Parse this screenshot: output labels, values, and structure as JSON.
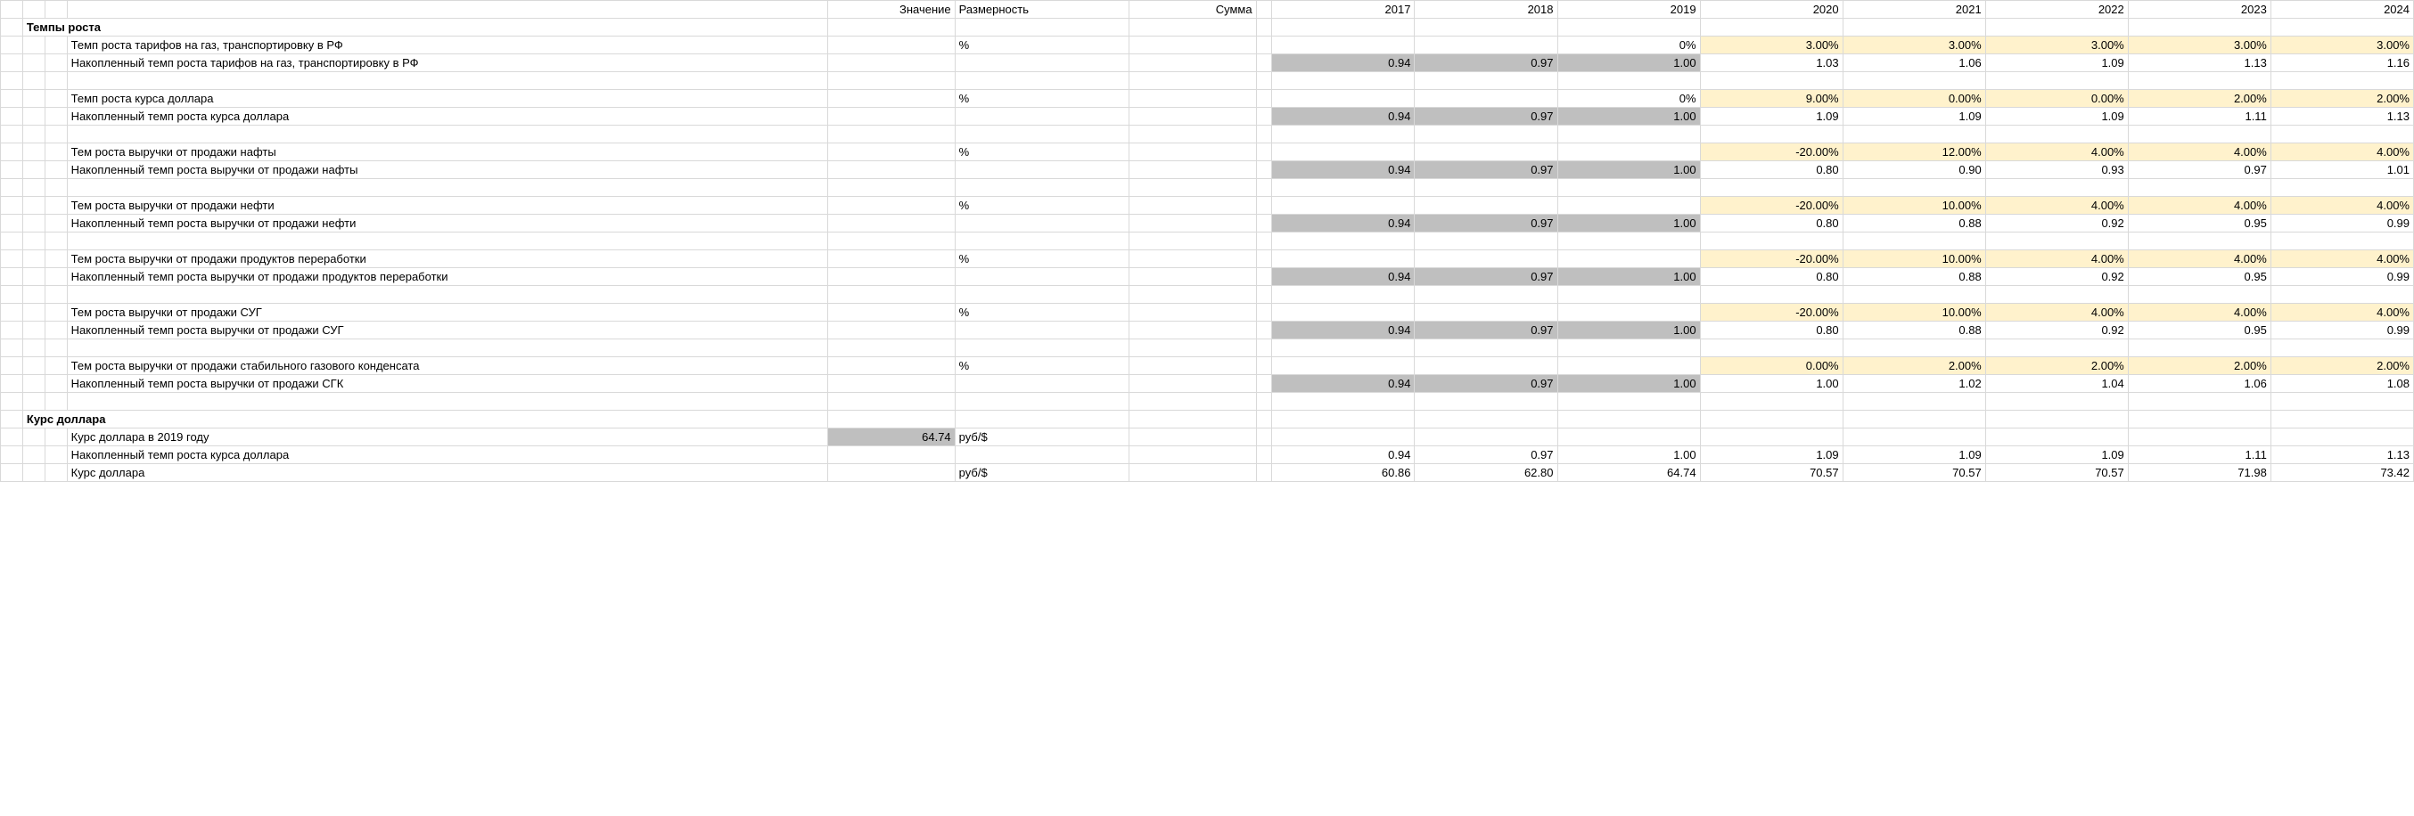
{
  "headers": {
    "value": "Значение",
    "unit": "Размерность",
    "sum": "Сумма",
    "years": [
      "2017",
      "2018",
      "2019",
      "2020",
      "2021",
      "2022",
      "2023",
      "2024"
    ]
  },
  "colors": {
    "highlight_yellow": "#fff2cc",
    "highlight_gray": "#bfbfbf",
    "grid": "#d9d9d9",
    "text": "#000000",
    "background": "#ffffff"
  },
  "section1": {
    "title": "Темпы роста",
    "groups": [
      {
        "rate_label": "Темп роста тарифов на газ, транспортировку в РФ",
        "rate_unit": "%",
        "rate_vals": [
          "",
          "",
          "0%",
          "3.00%",
          "3.00%",
          "3.00%",
          "3.00%",
          "3.00%"
        ],
        "rate_hl": [
          false,
          false,
          false,
          true,
          true,
          true,
          true,
          true
        ],
        "acc_label": "Накопленный темп роста тарифов на газ, транспортировку в РФ",
        "acc_vals": [
          "0.94",
          "0.97",
          "1.00",
          "1.03",
          "1.06",
          "1.09",
          "1.13",
          "1.16"
        ],
        "acc_hl": [
          true,
          true,
          true,
          false,
          false,
          false,
          false,
          false
        ]
      },
      {
        "rate_label": "Темп роста курса доллара",
        "rate_unit": "%",
        "rate_vals": [
          "",
          "",
          "0%",
          "9.00%",
          "0.00%",
          "0.00%",
          "2.00%",
          "2.00%"
        ],
        "rate_hl": [
          false,
          false,
          false,
          true,
          true,
          true,
          true,
          true
        ],
        "acc_label": "Накопленный темп роста курса доллара",
        "acc_vals": [
          "0.94",
          "0.97",
          "1.00",
          "1.09",
          "1.09",
          "1.09",
          "1.11",
          "1.13"
        ],
        "acc_hl": [
          true,
          true,
          true,
          false,
          false,
          false,
          false,
          false
        ]
      },
      {
        "rate_label": "Тем роста выручки от продажи нафты",
        "rate_unit": "%",
        "rate_vals": [
          "",
          "",
          "",
          "-20.00%",
          "12.00%",
          "4.00%",
          "4.00%",
          "4.00%"
        ],
        "rate_hl": [
          false,
          false,
          false,
          true,
          true,
          true,
          true,
          true
        ],
        "acc_label": "Накопленный темп роста выручки от продажи нафты",
        "acc_vals": [
          "0.94",
          "0.97",
          "1.00",
          "0.80",
          "0.90",
          "0.93",
          "0.97",
          "1.01"
        ],
        "acc_hl": [
          true,
          true,
          true,
          false,
          false,
          false,
          false,
          false
        ]
      },
      {
        "rate_label": "Тем роста выручки от продажи нефти",
        "rate_unit": "%",
        "rate_vals": [
          "",
          "",
          "",
          "-20.00%",
          "10.00%",
          "4.00%",
          "4.00%",
          "4.00%"
        ],
        "rate_hl": [
          false,
          false,
          false,
          true,
          true,
          true,
          true,
          true
        ],
        "acc_label": "Накопленный темп роста выручки от продажи нефти",
        "acc_vals": [
          "0.94",
          "0.97",
          "1.00",
          "0.80",
          "0.88",
          "0.92",
          "0.95",
          "0.99"
        ],
        "acc_hl": [
          true,
          true,
          true,
          false,
          false,
          false,
          false,
          false
        ]
      },
      {
        "rate_label": "Тем роста выручки от продажи продуктов переработки",
        "rate_unit": "%",
        "rate_vals": [
          "",
          "",
          "",
          "-20.00%",
          "10.00%",
          "4.00%",
          "4.00%",
          "4.00%"
        ],
        "rate_hl": [
          false,
          false,
          false,
          true,
          true,
          true,
          true,
          true
        ],
        "acc_label": "Накопленный темп роста выручки от продажи продуктов переработки",
        "acc_vals": [
          "0.94",
          "0.97",
          "1.00",
          "0.80",
          "0.88",
          "0.92",
          "0.95",
          "0.99"
        ],
        "acc_hl": [
          true,
          true,
          true,
          false,
          false,
          false,
          false,
          false
        ]
      },
      {
        "rate_label": "Тем роста выручки от продажи СУГ",
        "rate_unit": "%",
        "rate_vals": [
          "",
          "",
          "",
          "-20.00%",
          "10.00%",
          "4.00%",
          "4.00%",
          "4.00%"
        ],
        "rate_hl": [
          false,
          false,
          false,
          true,
          true,
          true,
          true,
          true
        ],
        "acc_label": "Накопленный темп роста выручки от продажи СУГ",
        "acc_vals": [
          "0.94",
          "0.97",
          "1.00",
          "0.80",
          "0.88",
          "0.92",
          "0.95",
          "0.99"
        ],
        "acc_hl": [
          true,
          true,
          true,
          false,
          false,
          false,
          false,
          false
        ]
      },
      {
        "rate_label": "Тем роста выручки от продажи стабильного газового конденсата",
        "rate_unit": "%",
        "rate_vals": [
          "",
          "",
          "",
          "0.00%",
          "2.00%",
          "2.00%",
          "2.00%",
          "2.00%"
        ],
        "rate_hl": [
          false,
          false,
          false,
          true,
          true,
          true,
          true,
          true
        ],
        "acc_label": "Накопленный темп роста выручки от продажи СГК",
        "acc_vals": [
          "0.94",
          "0.97",
          "1.00",
          "1.00",
          "1.02",
          "1.04",
          "1.06",
          "1.08"
        ],
        "acc_hl": [
          true,
          true,
          true,
          false,
          false,
          false,
          false,
          false
        ]
      }
    ]
  },
  "section2": {
    "title": "Курс доллара",
    "rows": [
      {
        "label": "Курс доллара в 2019 году",
        "value": "64.74",
        "value_hl": true,
        "unit": "руб/$",
        "vals": [
          "",
          "",
          "",
          "",
          "",
          "",
          "",
          ""
        ]
      },
      {
        "label": "Накопленный темп роста курса доллара",
        "value": "",
        "value_hl": false,
        "unit": "",
        "vals": [
          "0.94",
          "0.97",
          "1.00",
          "1.09",
          "1.09",
          "1.09",
          "1.11",
          "1.13"
        ]
      },
      {
        "label": "Курс доллара",
        "value": "",
        "value_hl": false,
        "unit": "руб/$",
        "vals": [
          "60.86",
          "62.80",
          "64.74",
          "70.57",
          "70.57",
          "70.57",
          "71.98",
          "73.42"
        ]
      }
    ]
  }
}
